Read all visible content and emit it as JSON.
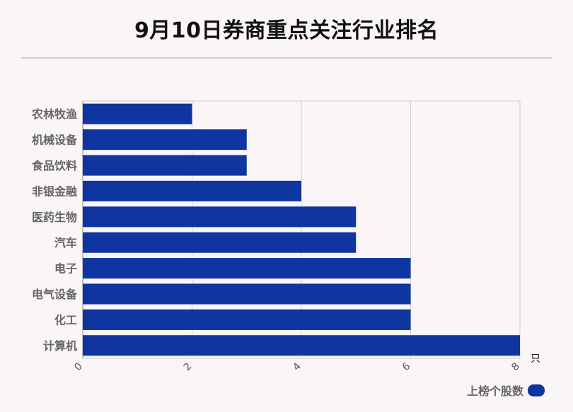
{
  "title": "9月10日券商重点关注行业排名",
  "chart_data": {
    "type": "bar",
    "orientation": "horizontal",
    "categories": [
      "农林牧渔",
      "机械设备",
      "食品饮料",
      "非银金融",
      "医药生物",
      "汽车",
      "电子",
      "电气设备",
      "化工",
      "计算机"
    ],
    "series": [
      {
        "name": "上榜个股数",
        "values": [
          2,
          3,
          3,
          4,
          5,
          5,
          6,
          6,
          6,
          8
        ]
      }
    ],
    "xlim": [
      0,
      8
    ],
    "xticks": [
      "0",
      "2",
      "4",
      "6",
      "8"
    ],
    "xunit": "只",
    "grid": true,
    "legend_position": "bottom-right",
    "bar_color": "#0f35a0"
  }
}
